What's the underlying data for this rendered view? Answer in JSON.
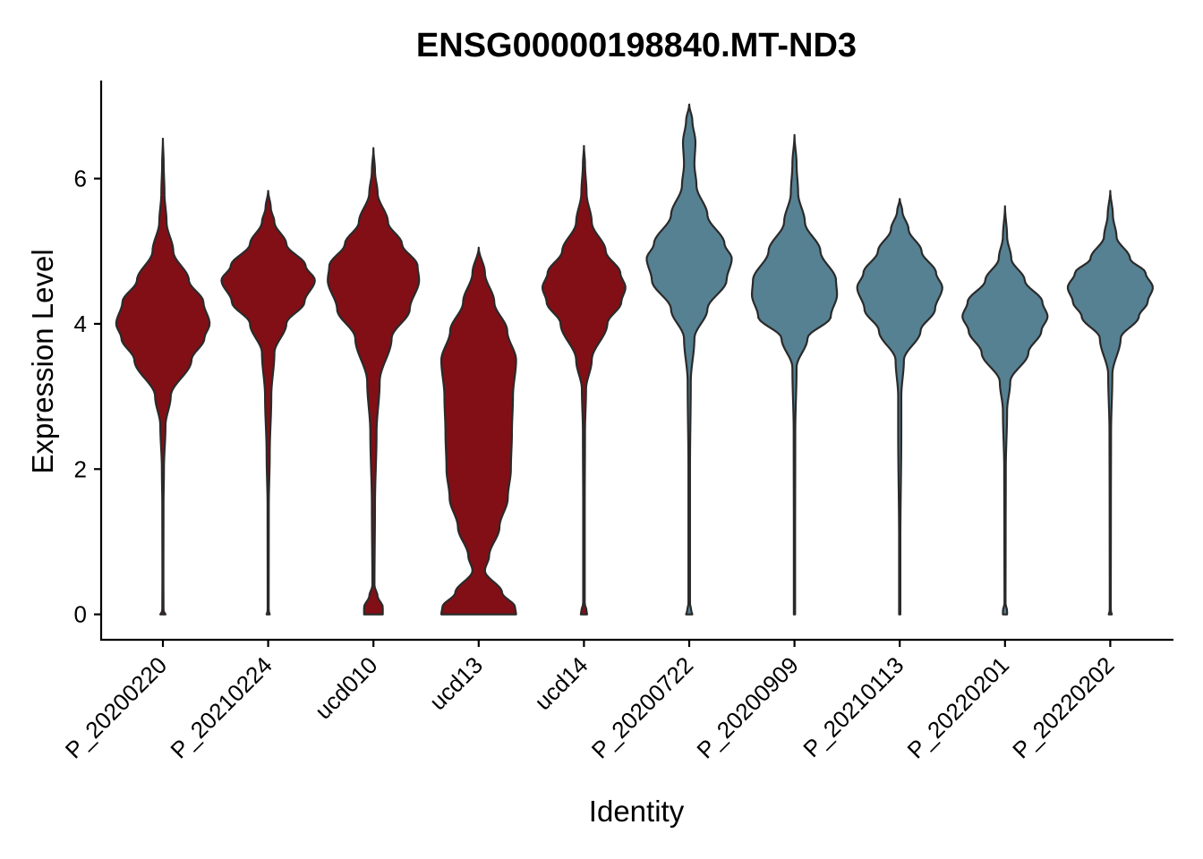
{
  "chart_data": {
    "type": "violin",
    "title": "ENSG00000198840.MT-ND3",
    "xlabel": "Identity",
    "ylabel": "Expression Level",
    "ylim": [
      -0.35,
      7.35
    ],
    "yticks": [
      0,
      2,
      4,
      6
    ],
    "grid": false,
    "legend": "none",
    "categories": [
      "P_20200220",
      "P_20210224",
      "ucd010",
      "ucd13",
      "ucd14",
      "P_20200722",
      "P_20200909",
      "P_20210113",
      "P_20220201",
      "P_20220202"
    ],
    "colors": {
      "P_20200220": "#820f16",
      "P_20210224": "#820f16",
      "ucd010": "#820f16",
      "ucd13": "#820f16",
      "ucd14": "#820f16",
      "P_20200722": "#568193",
      "P_20200909": "#568193",
      "P_20210113": "#568193",
      "P_20220201": "#568193",
      "P_20220202": "#568193"
    },
    "violins": [
      {
        "name": "P_20200220",
        "min": 0,
        "max": 6.55,
        "profile": [
          [
            0,
            0.05
          ],
          [
            0.05,
            0.012
          ],
          [
            0.5,
            0.01
          ],
          [
            1.5,
            0.012
          ],
          [
            2.0,
            0.02
          ],
          [
            2.6,
            0.05
          ],
          [
            3.0,
            0.15
          ],
          [
            3.5,
            0.55
          ],
          [
            3.8,
            0.8
          ],
          [
            4.0,
            0.9
          ],
          [
            4.3,
            0.78
          ],
          [
            4.6,
            0.5
          ],
          [
            5.0,
            0.2
          ],
          [
            5.4,
            0.07
          ],
          [
            5.8,
            0.03
          ],
          [
            6.2,
            0.015
          ],
          [
            6.55,
            0
          ]
        ]
      },
      {
        "name": "P_20210224",
        "min": 0,
        "max": 5.83,
        "profile": [
          [
            0,
            0.03
          ],
          [
            0.05,
            0.01
          ],
          [
            1.5,
            0.012
          ],
          [
            2.2,
            0.03
          ],
          [
            3.0,
            0.06
          ],
          [
            3.6,
            0.12
          ],
          [
            4.0,
            0.35
          ],
          [
            4.3,
            0.7
          ],
          [
            4.6,
            0.9
          ],
          [
            4.8,
            0.72
          ],
          [
            5.1,
            0.35
          ],
          [
            5.4,
            0.12
          ],
          [
            5.6,
            0.05
          ],
          [
            5.83,
            0
          ]
        ]
      },
      {
        "name": "ucd010",
        "min": 0,
        "max": 6.42,
        "profile": [
          [
            0,
            0.18
          ],
          [
            0.1,
            0.18
          ],
          [
            0.25,
            0.08
          ],
          [
            0.4,
            0.02
          ],
          [
            1.5,
            0.03
          ],
          [
            2.5,
            0.06
          ],
          [
            3.2,
            0.12
          ],
          [
            3.8,
            0.35
          ],
          [
            4.2,
            0.7
          ],
          [
            4.6,
            0.88
          ],
          [
            4.8,
            0.85
          ],
          [
            5.1,
            0.55
          ],
          [
            5.4,
            0.28
          ],
          [
            5.8,
            0.08
          ],
          [
            6.1,
            0.03
          ],
          [
            6.42,
            0
          ]
        ]
      },
      {
        "name": "ucd13",
        "min": 0,
        "max": 5.05,
        "profile": [
          [
            0,
            0.72
          ],
          [
            0.1,
            0.7
          ],
          [
            0.3,
            0.45
          ],
          [
            0.6,
            0.12
          ],
          [
            0.8,
            0.2
          ],
          [
            1.2,
            0.4
          ],
          [
            1.6,
            0.56
          ],
          [
            2.0,
            0.62
          ],
          [
            2.5,
            0.64
          ],
          [
            3.0,
            0.66
          ],
          [
            3.5,
            0.72
          ],
          [
            3.9,
            0.55
          ],
          [
            4.3,
            0.3
          ],
          [
            4.7,
            0.12
          ],
          [
            5.05,
            0
          ]
        ]
      },
      {
        "name": "ucd14",
        "min": 0,
        "max": 6.45,
        "profile": [
          [
            0,
            0.06
          ],
          [
            0.05,
            0.05
          ],
          [
            0.15,
            0.015
          ],
          [
            1.5,
            0.015
          ],
          [
            2.5,
            0.02
          ],
          [
            3.1,
            0.04
          ],
          [
            3.5,
            0.15
          ],
          [
            4.0,
            0.45
          ],
          [
            4.3,
            0.72
          ],
          [
            4.5,
            0.8
          ],
          [
            4.7,
            0.7
          ],
          [
            5.0,
            0.42
          ],
          [
            5.4,
            0.15
          ],
          [
            5.8,
            0.05
          ],
          [
            6.2,
            0.02
          ],
          [
            6.45,
            0
          ]
        ]
      },
      {
        "name": "P_20200722",
        "min": 0,
        "max": 7.02,
        "profile": [
          [
            0,
            0.06
          ],
          [
            0.05,
            0.04
          ],
          [
            0.15,
            0.015
          ],
          [
            2.0,
            0.015
          ],
          [
            3.2,
            0.03
          ],
          [
            3.8,
            0.1
          ],
          [
            4.2,
            0.35
          ],
          [
            4.6,
            0.72
          ],
          [
            4.9,
            0.82
          ],
          [
            5.1,
            0.68
          ],
          [
            5.5,
            0.35
          ],
          [
            5.9,
            0.14
          ],
          [
            6.2,
            0.1
          ],
          [
            6.5,
            0.12
          ],
          [
            6.8,
            0.06
          ],
          [
            7.02,
            0
          ]
        ]
      },
      {
        "name": "P_20200909",
        "min": 0,
        "max": 6.6,
        "profile": [
          [
            0,
            0.012
          ],
          [
            1.0,
            0.012
          ],
          [
            2.5,
            0.015
          ],
          [
            3.4,
            0.04
          ],
          [
            3.8,
            0.25
          ],
          [
            4.1,
            0.7
          ],
          [
            4.4,
            0.82
          ],
          [
            4.6,
            0.8
          ],
          [
            5.0,
            0.5
          ],
          [
            5.4,
            0.2
          ],
          [
            5.8,
            0.07
          ],
          [
            6.2,
            0.04
          ],
          [
            6.6,
            0
          ]
        ]
      },
      {
        "name": "P_20210113",
        "min": 0,
        "max": 5.72,
        "profile": [
          [
            0,
            0.012
          ],
          [
            1.0,
            0.012
          ],
          [
            2.5,
            0.03
          ],
          [
            3.0,
            0.03
          ],
          [
            3.5,
            0.08
          ],
          [
            3.9,
            0.4
          ],
          [
            4.2,
            0.68
          ],
          [
            4.5,
            0.82
          ],
          [
            4.7,
            0.7
          ],
          [
            5.0,
            0.42
          ],
          [
            5.3,
            0.17
          ],
          [
            5.55,
            0.05
          ],
          [
            5.72,
            0
          ]
        ]
      },
      {
        "name": "P_20220201",
        "min": 0,
        "max": 5.62,
        "profile": [
          [
            0,
            0.04
          ],
          [
            0.05,
            0.04
          ],
          [
            0.15,
            0.01
          ],
          [
            1.0,
            0.012
          ],
          [
            2.0,
            0.015
          ],
          [
            2.8,
            0.04
          ],
          [
            3.2,
            0.1
          ],
          [
            3.6,
            0.45
          ],
          [
            3.9,
            0.7
          ],
          [
            4.1,
            0.82
          ],
          [
            4.3,
            0.72
          ],
          [
            4.6,
            0.38
          ],
          [
            4.9,
            0.12
          ],
          [
            5.2,
            0.04
          ],
          [
            5.62,
            0
          ]
        ]
      },
      {
        "name": "P_20220202",
        "min": 0,
        "max": 5.83,
        "profile": [
          [
            0,
            0.03
          ],
          [
            0.05,
            0.01
          ],
          [
            1.5,
            0.012
          ],
          [
            2.5,
            0.015
          ],
          [
            3.3,
            0.04
          ],
          [
            3.8,
            0.2
          ],
          [
            4.1,
            0.55
          ],
          [
            4.3,
            0.72
          ],
          [
            4.5,
            0.82
          ],
          [
            4.7,
            0.68
          ],
          [
            4.9,
            0.38
          ],
          [
            5.2,
            0.12
          ],
          [
            5.5,
            0.05
          ],
          [
            5.83,
            0
          ]
        ]
      }
    ]
  }
}
